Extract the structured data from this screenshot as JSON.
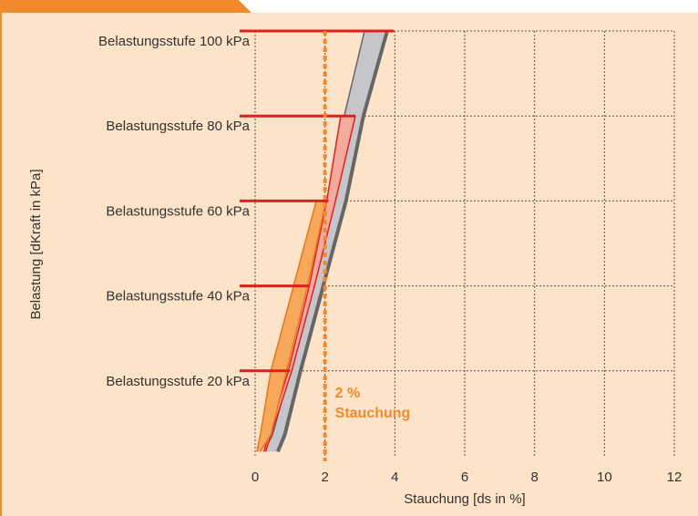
{
  "chart_data": {
    "type": "area-bands",
    "xlabel": "Stauchung [ds in %]",
    "ylabel": "Belastung [dKraft in kPa]",
    "annotation": [
      "2 %",
      "Stauchung"
    ],
    "xlim": [
      0,
      12
    ],
    "ylim": [
      0,
      100
    ],
    "xticks": [
      0,
      2,
      4,
      6,
      8,
      10,
      12
    ],
    "yticks": [
      {
        "value": 20,
        "label": "Belastungsstufe 20 kPa"
      },
      {
        "value": 40,
        "label": "Belastungsstufe 40 kPa"
      },
      {
        "value": 60,
        "label": "Belastungsstufe 60 kPa"
      },
      {
        "value": 80,
        "label": "Belastungsstufe 80 kPa"
      },
      {
        "value": 100,
        "label": "Belastungsstufe 100 kPa"
      }
    ],
    "grid": true,
    "series": [
      {
        "color": "#c6c6ca",
        "edge_color": "#666666",
        "values": [
          1,
          5,
          20,
          40,
          60,
          80,
          100
        ],
        "x_left": [
          0.25,
          0.5,
          1.0,
          1.6,
          2.1,
          2.55,
          3.13
        ],
        "x_right": [
          0.65,
          0.85,
          1.3,
          1.95,
          2.6,
          3.1,
          3.78
        ]
      },
      {
        "color": "#f4aa9c",
        "edge_color": "#e02020",
        "values": [
          1,
          20,
          40,
          60,
          80
        ],
        "x_left": [
          0.25,
          0.95,
          1.55,
          2.05,
          2.45
        ],
        "x_right": [
          0.3,
          1.05,
          1.7,
          2.3,
          2.87
        ]
      },
      {
        "color": "#f7a85a",
        "edge_color": "#e8761e",
        "values": [
          1,
          5,
          20,
          40,
          60
        ],
        "x_left": [
          0.05,
          0.15,
          0.45,
          1.1,
          1.75
        ],
        "x_right": [
          0.15,
          0.45,
          0.9,
          1.5,
          2.03
        ]
      }
    ],
    "load_steps": {
      "color": "#e02020",
      "values": [
        20,
        40,
        60,
        80,
        100
      ],
      "x": [
        1.0,
        1.55,
        2.1,
        2.87,
        3.97
      ]
    },
    "threshold": {
      "color": "#f08a2c",
      "x": 2
    }
  }
}
